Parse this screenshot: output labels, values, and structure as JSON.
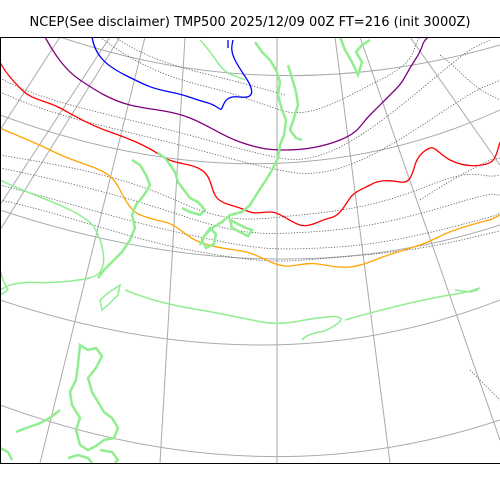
{
  "header": {
    "title": "NCEP(See disclaimer) TMP500 2025/12/09 00Z FT=216 (init 3000Z)"
  },
  "map": {
    "variable": "TMP500",
    "projection": "polar-stereographic",
    "colors": {
      "graticule": "#aaaaaa",
      "coastline": "#90ee90",
      "isotherm_dotted": "#555555",
      "isotherm_blue": "#0000ff",
      "isotherm_purple": "#800080",
      "isotherm_red": "#ff0000",
      "isotherm_orange": "#ffa500"
    }
  }
}
